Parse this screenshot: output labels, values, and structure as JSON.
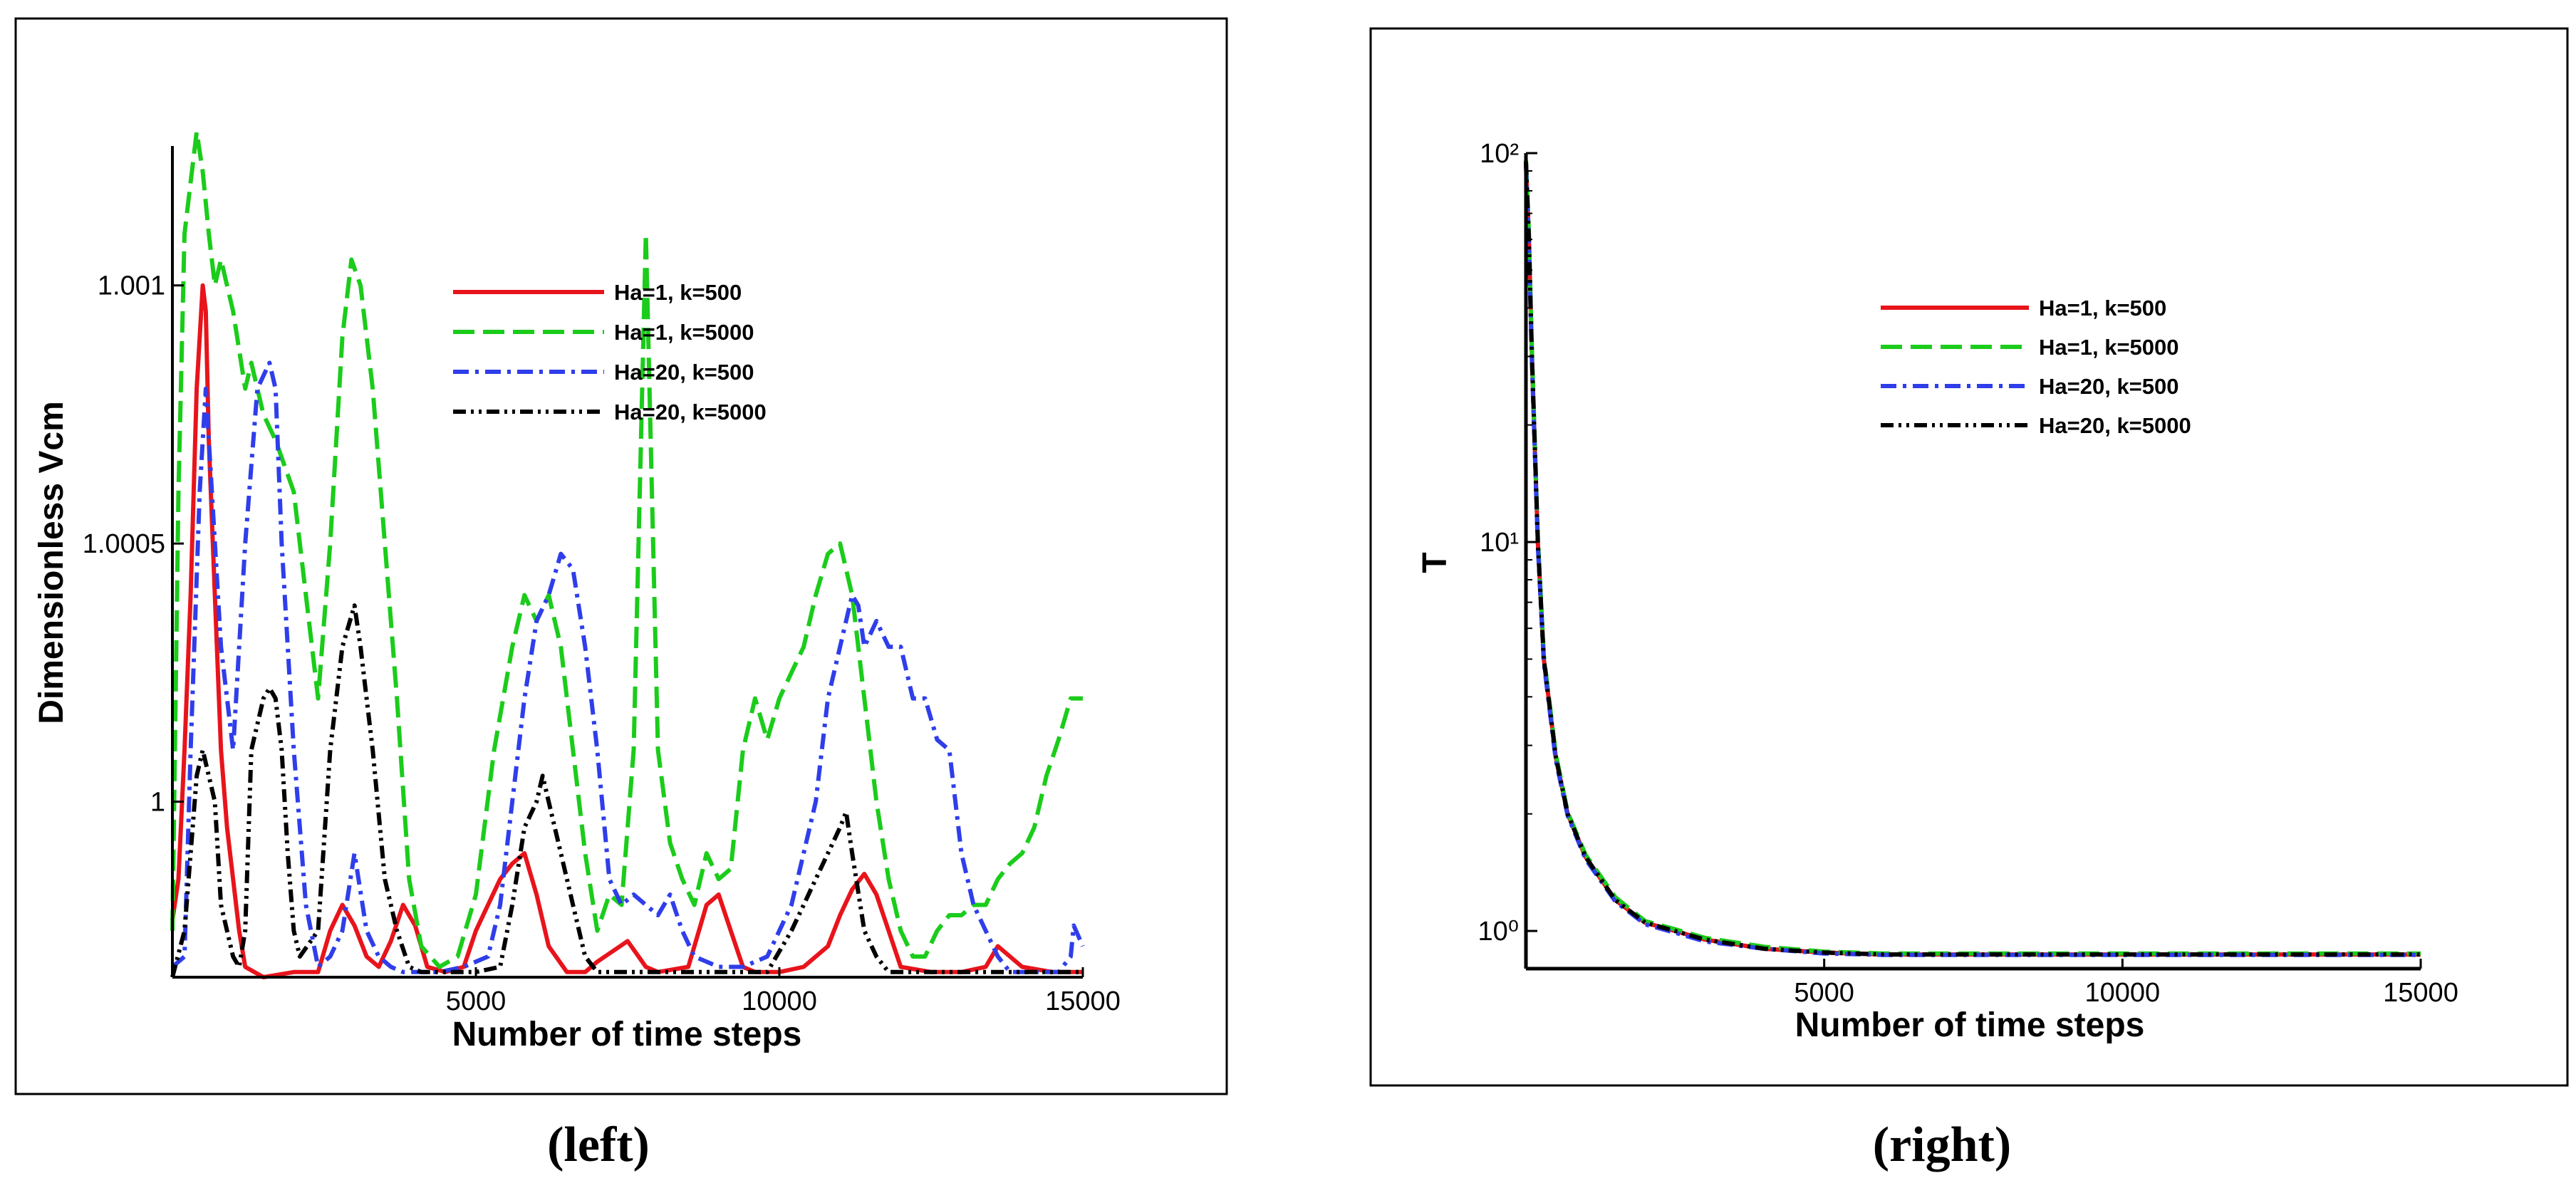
{
  "chart_data": [
    {
      "id": "left",
      "type": "line",
      "caption": "(left)",
      "xlabel": "Number of time steps",
      "ylabel": "Dimensionless Vcm",
      "xlim": [
        0,
        15000
      ],
      "ylim": [
        0.99966,
        1.00127
      ],
      "yscale": "linear",
      "xticks": [
        5000,
        10000,
        15000
      ],
      "xtick_labels": [
        "5000",
        "10000",
        "15000"
      ],
      "yticks": [
        1.0,
        1.0005,
        1.001
      ],
      "ytick_labels": [
        "1",
        "1.0005",
        "1.001"
      ],
      "legend": {
        "position": "top-center"
      },
      "series": [
        {
          "name": "Ha=1, k=500",
          "color": "#e8141b",
          "dash": "solid",
          "x": [
            0,
            100,
            200,
            300,
            400,
            500,
            550,
            600,
            700,
            800,
            900,
            1000,
            1100,
            1200,
            1500,
            2000,
            2400,
            2600,
            2800,
            3000,
            3200,
            3400,
            3600,
            3800,
            4000,
            4200,
            4500,
            4800,
            5000,
            5200,
            5400,
            5600,
            5800,
            6000,
            6200,
            6500,
            6800,
            7000,
            7500,
            7800,
            8000,
            8500,
            8800,
            9000,
            9200,
            9400,
            9600,
            9800,
            10000,
            10400,
            10800,
            11000,
            11200,
            11400,
            11600,
            11800,
            12000,
            12500,
            13000,
            13400,
            13600,
            14000,
            14500,
            15000
          ],
          "y": [
            0.99977,
            0.99985,
            1.0001,
            1.0004,
            1.0008,
            1.001,
            1.00095,
            1.0007,
            1.0004,
            1.0001,
            0.99995,
            0.99985,
            0.99975,
            0.99968,
            0.99966,
            0.99967,
            0.99967,
            0.99975,
            0.9998,
            0.99976,
            0.9997,
            0.99968,
            0.99973,
            0.9998,
            0.99976,
            0.99968,
            0.99967,
            0.99968,
            0.99975,
            0.9998,
            0.99985,
            0.99988,
            0.9999,
            0.99982,
            0.99972,
            0.99967,
            0.99967,
            0.99969,
            0.99973,
            0.99968,
            0.99967,
            0.99968,
            0.9998,
            0.99982,
            0.99975,
            0.99968,
            0.99967,
            0.99967,
            0.99967,
            0.99968,
            0.99972,
            0.99978,
            0.99983,
            0.99986,
            0.99982,
            0.99975,
            0.99968,
            0.99967,
            0.99967,
            0.99968,
            0.99972,
            0.99968,
            0.99967,
            0.99967
          ]
        },
        {
          "name": "Ha=1, k=5000",
          "color": "#1bcc1b",
          "dash": "long-dash",
          "x": [
            0,
            100,
            200,
            300,
            400,
            500,
            600,
            700,
            800,
            1000,
            1200,
            1300,
            1400,
            1500,
            1700,
            2000,
            2200,
            2400,
            2600,
            2800,
            2950,
            3100,
            3300,
            3500,
            3700,
            3900,
            4100,
            4400,
            4700,
            5000,
            5300,
            5600,
            5800,
            6000,
            6200,
            6400,
            6600,
            6800,
            7000,
            7200,
            7400,
            7600,
            7800,
            8000,
            8200,
            8400,
            8600,
            8800,
            9000,
            9200,
            9400,
            9600,
            9800,
            10000,
            10200,
            10400,
            10600,
            10800,
            11000,
            11200,
            11400,
            11600,
            11800,
            12000,
            12200,
            12400,
            12600,
            12800,
            13000,
            13200,
            13400,
            13600,
            13800,
            14000,
            14200,
            14400,
            14600,
            14800,
            15000
          ],
          "y": [
            0.99975,
            1.0006,
            1.0011,
            1.0012,
            1.0013,
            1.00122,
            1.0011,
            1.001,
            1.00105,
            1.00095,
            1.0008,
            1.00085,
            1.0008,
            1.00075,
            1.0007,
            1.0006,
            1.0004,
            1.0002,
            1.0005,
            1.0009,
            1.00105,
            1.001,
            1.0008,
            1.0005,
            1.0002,
            0.99985,
            0.99972,
            0.99968,
            0.9997,
            0.99982,
            1.0001,
            1.0003,
            1.0004,
            1.00035,
            1.0004,
            1.0003,
            1.0001,
            0.9999,
            0.99975,
            0.99982,
            0.9998,
            1.0001,
            1.0011,
            1.0001,
            0.99992,
            0.99985,
            0.9998,
            0.9999,
            0.99985,
            0.99987,
            1.0001,
            1.0002,
            1.00012,
            1.0002,
            1.00025,
            1.0003,
            1.0004,
            1.00048,
            1.0005,
            1.0004,
            1.0002,
            1.0,
            0.99985,
            0.99975,
            0.9997,
            0.9997,
            0.99975,
            0.99978,
            0.99978,
            0.9998,
            0.9998,
            0.99985,
            0.99988,
            0.9999,
            0.99995,
            1.00005,
            1.00012,
            1.0002,
            1.0002
          ]
        },
        {
          "name": "Ha=20, k=500",
          "color": "#2f3eea",
          "dash": "dash-dot",
          "x": [
            0,
            200,
            300,
            450,
            550,
            650,
            800,
            1000,
            1200,
            1400,
            1600,
            1700,
            1800,
            1900,
            2000,
            2200,
            2400,
            2600,
            2800,
            3000,
            3200,
            3400,
            3600,
            3800,
            4000,
            4400,
            4800,
            5200,
            5400,
            5600,
            5800,
            6000,
            6200,
            6400,
            6600,
            6800,
            7000,
            7200,
            7400,
            7600,
            7800,
            8000,
            8200,
            8400,
            8600,
            8800,
            9000,
            9400,
            9800,
            10000,
            10200,
            10400,
            10600,
            10800,
            11000,
            11200,
            11300,
            11400,
            11600,
            11800,
            12000,
            12200,
            12400,
            12600,
            12800,
            13000,
            13200,
            13400,
            13600,
            13800,
            14000,
            14200,
            14400,
            14600,
            14800,
            14850,
            15000
          ],
          "y": [
            0.99968,
            0.9997,
            1.0001,
            1.0006,
            1.0008,
            1.0006,
            1.0003,
            1.0001,
            1.0005,
            1.0008,
            1.00085,
            1.0008,
            1.0005,
            1.0003,
            1.0001,
            0.9998,
            0.99968,
            0.9997,
            0.99975,
            0.9999,
            0.99975,
            0.9997,
            0.99968,
            0.99967,
            0.99967,
            0.99967,
            0.99968,
            0.9997,
            0.9998,
            1.0,
            1.0002,
            1.00035,
            1.0004,
            1.00048,
            1.00045,
            1.0003,
            1.0001,
            0.99985,
            0.9998,
            0.99982,
            0.9998,
            0.99978,
            0.99982,
            0.99975,
            0.9997,
            0.99969,
            0.99968,
            0.99968,
            0.9997,
            0.99975,
            0.9998,
            0.9999,
            1.0,
            1.0002,
            1.0003,
            1.0004,
            1.00038,
            1.0003,
            1.00035,
            1.0003,
            1.0003,
            1.0002,
            1.0002,
            1.00012,
            1.0001,
            0.9999,
            0.9998,
            0.99975,
            0.9997,
            0.99967,
            0.99967,
            0.99967,
            0.99967,
            0.99967,
            0.9997,
            0.99976,
            0.99972
          ]
        },
        {
          "name": "Ha=20, k=5000",
          "color": "#000000",
          "dash": "dash-dot-dot",
          "x": [
            0,
            200,
            300,
            400,
            500,
            600,
            700,
            800,
            900,
            1000,
            1100,
            1200,
            1300,
            1500,
            1600,
            1700,
            1800,
            1900,
            2000,
            2100,
            2400,
            2600,
            2800,
            3000,
            3100,
            3200,
            3300,
            3500,
            3700,
            3900,
            4100,
            4500,
            5000,
            5400,
            5600,
            5800,
            6000,
            6100,
            6200,
            6400,
            6600,
            6800,
            7000,
            7500,
            8000,
            9000,
            9800,
            10200,
            10400,
            10600,
            10800,
            11000,
            11100,
            11200,
            11400,
            11600,
            11800,
            12200,
            13000,
            14000,
            15000
          ],
          "y": [
            0.99966,
            0.99975,
            0.9999,
            1.00005,
            1.0001,
            1.00005,
            1.0,
            0.9998,
            0.99975,
            0.9997,
            0.99968,
            0.99975,
            1.0001,
            1.0002,
            1.00022,
            1.0002,
            1.0001,
            0.9999,
            0.99975,
            0.9997,
            0.99975,
            1.0001,
            1.0003,
            1.00038,
            1.0003,
            1.0002,
            1.0001,
            0.99985,
            0.99975,
            0.99968,
            0.99967,
            0.99967,
            0.99967,
            0.99968,
            0.9998,
            0.99995,
            1.0,
            1.00005,
            1.0,
            0.9999,
            0.9998,
            0.9997,
            0.99967,
            0.99967,
            0.99967,
            0.99967,
            0.99967,
            0.99975,
            0.9998,
            0.99985,
            0.9999,
            0.99995,
            0.99998,
            0.9999,
            0.99975,
            0.9997,
            0.99967,
            0.99967,
            0.99967,
            0.99967,
            0.99967
          ]
        }
      ]
    },
    {
      "id": "right",
      "type": "line",
      "caption": "(right)",
      "xlabel": "Number of time steps",
      "ylabel": "T",
      "xlim": [
        0,
        15000
      ],
      "ylim": [
        0.8,
        100
      ],
      "yscale": "log",
      "xticks": [
        5000,
        10000,
        15000
      ],
      "xtick_labels": [
        "5000",
        "10000",
        "15000"
      ],
      "yticks": [
        1,
        10,
        100
      ],
      "ytick_labels": [
        "10⁰",
        "10¹",
        "10²"
      ],
      "legend": {
        "position": "top-center"
      },
      "series": [
        {
          "name": "Ha=1, k=500",
          "color": "#e8141b",
          "dash": "solid",
          "x": [
            0,
            50,
            100,
            200,
            300,
            500,
            700,
            1000,
            1500,
            2000,
            2500,
            3000,
            4000,
            5000,
            6000,
            8000,
            10000,
            12000,
            15000
          ],
          "y": [
            95,
            60,
            30,
            10,
            5,
            2.8,
            2.0,
            1.55,
            1.2,
            1.05,
            1.0,
            0.95,
            0.9,
            0.88,
            0.87,
            0.87,
            0.87,
            0.87,
            0.87
          ]
        },
        {
          "name": "Ha=1, k=5000",
          "color": "#1bcc1b",
          "dash": "long-dash",
          "x": [
            0,
            50,
            100,
            200,
            300,
            500,
            700,
            1000,
            1500,
            2000,
            2500,
            3000,
            4000,
            5000,
            6000,
            8000,
            10000,
            12000,
            15000
          ],
          "y": [
            96,
            62,
            31,
            10.3,
            5.1,
            2.85,
            2.02,
            1.57,
            1.22,
            1.06,
            1.01,
            0.96,
            0.91,
            0.885,
            0.875,
            0.875,
            0.875,
            0.875,
            0.875
          ]
        },
        {
          "name": "Ha=20, k=500",
          "color": "#2f3eea",
          "dash": "dash-dot",
          "x": [
            0,
            50,
            100,
            200,
            300,
            500,
            700,
            1000,
            1500,
            2000,
            2500,
            3000,
            4000,
            5000,
            6000,
            8000,
            10000,
            12000,
            15000
          ],
          "y": [
            94,
            58,
            29,
            9.8,
            4.9,
            2.75,
            1.98,
            1.53,
            1.19,
            1.04,
            0.99,
            0.94,
            0.9,
            0.875,
            0.868,
            0.868,
            0.868,
            0.868,
            0.868
          ]
        },
        {
          "name": "Ha=20, k=5000",
          "color": "#000000",
          "dash": "dash-dot-dot",
          "x": [
            0,
            50,
            100,
            200,
            300,
            500,
            700,
            1000,
            1500,
            2000,
            2500,
            3000,
            4000,
            5000,
            6000,
            8000,
            10000,
            12000,
            15000
          ],
          "y": [
            95,
            60,
            30,
            10,
            5,
            2.8,
            2.0,
            1.55,
            1.2,
            1.05,
            1.0,
            0.95,
            0.9,
            0.88,
            0.87,
            0.87,
            0.87,
            0.87,
            0.87
          ]
        }
      ]
    }
  ]
}
